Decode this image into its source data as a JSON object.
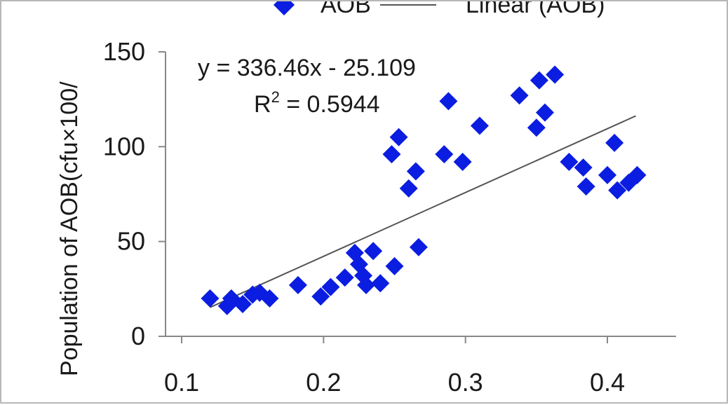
{
  "chart_data": {
    "type": "scatter",
    "title": "",
    "xlabel": "",
    "ylabel": "Population of AOB(cfu×100/",
    "xlim": [
      0.1,
      0.45
    ],
    "ylim": [
      0,
      150
    ],
    "x_ticks": [
      "0.1",
      "0.2",
      "0.3",
      "0.4"
    ],
    "y_ticks": [
      "0",
      "50",
      "100",
      "150"
    ],
    "grid": false,
    "legend": {
      "placement": "top",
      "entries": [
        {
          "label": "AOB",
          "marker": "diamond",
          "color": "#0b1de0"
        },
        {
          "label": "Linear (AOB)",
          "marker": "line",
          "color": "#555555"
        }
      ]
    },
    "series": [
      {
        "name": "AOB",
        "color": "#0b1de0",
        "points": [
          [
            0.12,
            20
          ],
          [
            0.132,
            16
          ],
          [
            0.135,
            20
          ],
          [
            0.143,
            17
          ],
          [
            0.15,
            22
          ],
          [
            0.155,
            23
          ],
          [
            0.162,
            20
          ],
          [
            0.182,
            27
          ],
          [
            0.198,
            21
          ],
          [
            0.205,
            26
          ],
          [
            0.215,
            31
          ],
          [
            0.222,
            44
          ],
          [
            0.225,
            38
          ],
          [
            0.228,
            32
          ],
          [
            0.23,
            27
          ],
          [
            0.235,
            45
          ],
          [
            0.24,
            28
          ],
          [
            0.25,
            37
          ],
          [
            0.248,
            96
          ],
          [
            0.253,
            105
          ],
          [
            0.26,
            78
          ],
          [
            0.265,
            87
          ],
          [
            0.267,
            47
          ],
          [
            0.285,
            96
          ],
          [
            0.288,
            124
          ],
          [
            0.298,
            92
          ],
          [
            0.31,
            111
          ],
          [
            0.338,
            127
          ],
          [
            0.35,
            110
          ],
          [
            0.352,
            135
          ],
          [
            0.356,
            118
          ],
          [
            0.363,
            138
          ],
          [
            0.373,
            92
          ],
          [
            0.383,
            89
          ],
          [
            0.385,
            79
          ],
          [
            0.4,
            85
          ],
          [
            0.405,
            102
          ],
          [
            0.407,
            77
          ],
          [
            0.415,
            81
          ],
          [
            0.421,
            85
          ]
        ]
      }
    ],
    "trendline": {
      "name": "Linear (AOB)",
      "slope": 336.46,
      "intercept": -25.109,
      "x_range": [
        0.12,
        0.42
      ],
      "color": "#555555"
    },
    "annotations": {
      "equation": "y = 336.46x - 25.109",
      "r2_label": "R",
      "r2_superscript": "2",
      "r2_value": " = 0.5944"
    }
  }
}
